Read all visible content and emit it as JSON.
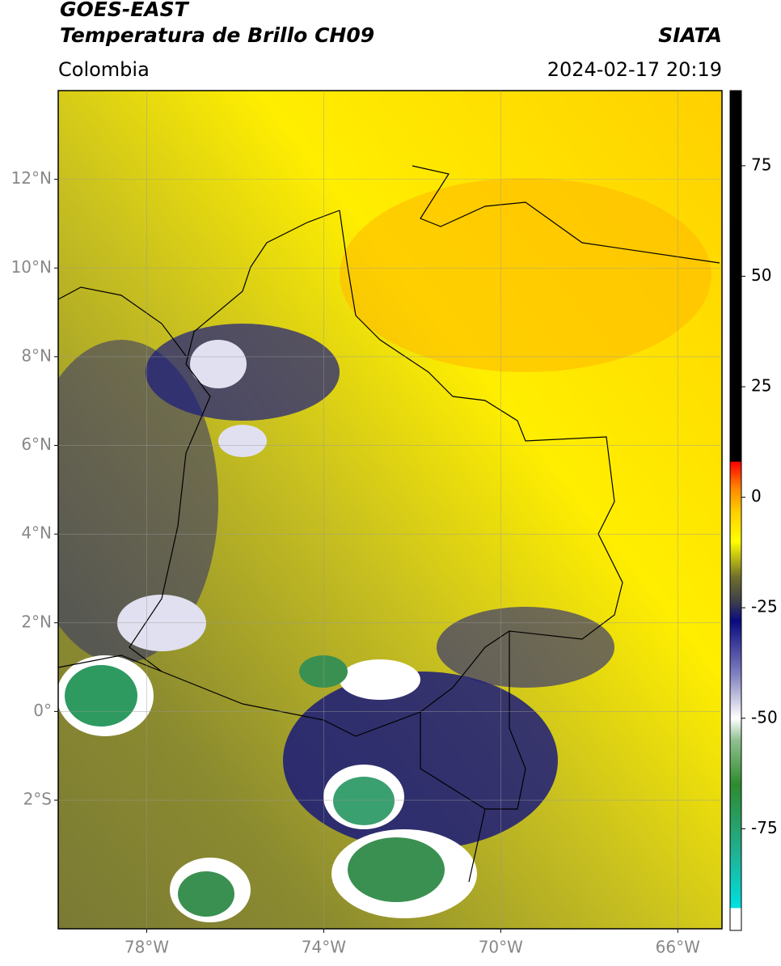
{
  "header": {
    "satellite": "GOES-EAST",
    "product": "Temperatura de Brillo CH09",
    "source": "SIATA",
    "region": "Colombia",
    "datetime": "2024-02-17 20:19"
  },
  "map": {
    "xlim": [
      -80,
      -65
    ],
    "ylim": [
      -4.9,
      14
    ],
    "grid": true,
    "xticks": [
      {
        "value": -78,
        "label": "78°W"
      },
      {
        "value": -74,
        "label": "74°W"
      },
      {
        "value": -70,
        "label": "70°W"
      },
      {
        "value": -66,
        "label": "66°W"
      }
    ],
    "yticks": [
      {
        "value": 12,
        "label": "12°N"
      },
      {
        "value": 10,
        "label": "10°N"
      },
      {
        "value": 8,
        "label": "8°N"
      },
      {
        "value": 6,
        "label": "6°N"
      },
      {
        "value": 4,
        "label": "4°N"
      },
      {
        "value": 2,
        "label": "2°N"
      },
      {
        "value": 0,
        "label": "0°"
      },
      {
        "value": -2,
        "label": "2°S"
      }
    ]
  },
  "colorbar": {
    "lim": [
      -98,
      92
    ],
    "ticks": [
      75,
      50,
      25,
      0,
      -25,
      -50,
      -75
    ],
    "stops": [
      {
        "value": -98,
        "color": "#ffffff"
      },
      {
        "value": -93,
        "color": "#ffffff"
      },
      {
        "value": -92.9,
        "color": "#00e0e0"
      },
      {
        "value": -80,
        "color": "#20b090"
      },
      {
        "value": -65,
        "color": "#2e8b2e"
      },
      {
        "value": -55,
        "color": "#90c090"
      },
      {
        "value": -50,
        "color": "#ffffff"
      },
      {
        "value": -40,
        "color": "#8080c0"
      },
      {
        "value": -28,
        "color": "#0a0a80"
      },
      {
        "value": -24,
        "color": "#3a3a50"
      },
      {
        "value": -18,
        "color": "#70702a"
      },
      {
        "value": -10,
        "color": "#ffff00"
      },
      {
        "value": -3,
        "color": "#ffcc00"
      },
      {
        "value": 2,
        "color": "#ff8800"
      },
      {
        "value": 8,
        "color": "#ff0000"
      },
      {
        "value": 8.1,
        "color": "#000000"
      },
      {
        "value": 92,
        "color": "#000000"
      }
    ]
  }
}
